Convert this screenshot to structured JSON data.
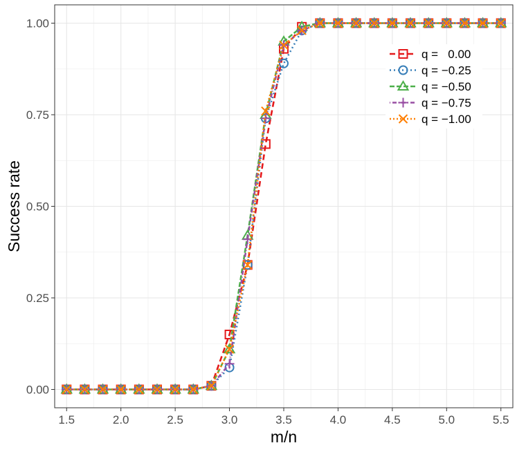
{
  "chart_data": {
    "type": "line",
    "xlabel": "m/n",
    "ylabel": "Success rate",
    "xlim": [
      1.39,
      5.61
    ],
    "ylim": [
      -0.05,
      1.05
    ],
    "x_ticks": [
      1.5,
      2.0,
      2.5,
      3.0,
      3.5,
      4.0,
      4.5,
      5.0,
      5.5
    ],
    "x_tick_labels": [
      "1.5",
      "2.0",
      "2.5",
      "3.0",
      "3.5",
      "4.0",
      "4.5",
      "5.0",
      "5.5"
    ],
    "y_ticks": [
      0,
      0.25,
      0.5,
      0.75,
      1.0
    ],
    "y_tick_labels": [
      "0.00",
      "0.25",
      "0.50",
      "0.75",
      "1.00"
    ],
    "grid": true,
    "legend_position": "top-right",
    "x": [
      1.5,
      1.6667,
      1.8333,
      2.0,
      2.1667,
      2.3333,
      2.5,
      2.6667,
      2.8333,
      3.0,
      3.1667,
      3.3333,
      3.5,
      3.6667,
      3.8333,
      4.0,
      4.1667,
      4.3333,
      4.5,
      4.6667,
      4.8333,
      5.0,
      5.1667,
      5.3333,
      5.5
    ],
    "series": [
      {
        "name": "q =   0.00",
        "color": "#e41a1c",
        "dash": "8,5",
        "marker": "square",
        "values": [
          0,
          0,
          0,
          0,
          0,
          0,
          0,
          0,
          0.01,
          0.15,
          0.34,
          0.67,
          0.93,
          0.99,
          1,
          1,
          1,
          1,
          1,
          1,
          1,
          1,
          1,
          1,
          1
        ]
      },
      {
        "name": "q = −0.25",
        "color": "#377eb8",
        "dash": "2,4",
        "marker": "circle",
        "values": [
          0,
          0,
          0,
          0,
          0,
          0,
          0,
          0,
          0.01,
          0.06,
          0.34,
          0.74,
          0.89,
          0.98,
          1,
          1,
          1,
          1,
          1,
          1,
          1,
          1,
          1,
          1,
          1
        ]
      },
      {
        "name": "q = −0.50",
        "color": "#4daf4a",
        "dash": "7,3",
        "marker": "triangle",
        "values": [
          0,
          0,
          0,
          0,
          0,
          0,
          0,
          0,
          0.01,
          0.11,
          0.42,
          0.75,
          0.95,
          0.99,
          1,
          1,
          1,
          1,
          1,
          1,
          1,
          1,
          1,
          1,
          1
        ]
      },
      {
        "name": "q = −0.75",
        "color": "#984ea3",
        "dash": "1,3,6,3",
        "marker": "plus",
        "values": [
          0,
          0,
          0,
          0,
          0,
          0,
          0,
          0,
          0.01,
          0.07,
          0.41,
          0.74,
          0.94,
          0.98,
          1,
          1,
          1,
          1,
          1,
          1,
          1,
          1,
          1,
          1,
          1
        ]
      },
      {
        "name": "q = −1.00",
        "color": "#ff7f00",
        "dash": "2,3",
        "marker": "cross",
        "values": [
          0,
          0,
          0,
          0,
          0,
          0,
          0,
          0,
          0.01,
          0.11,
          0.34,
          0.76,
          0.94,
          0.98,
          1,
          1,
          1,
          1,
          1,
          1,
          1,
          1,
          1,
          1,
          1
        ]
      }
    ]
  }
}
